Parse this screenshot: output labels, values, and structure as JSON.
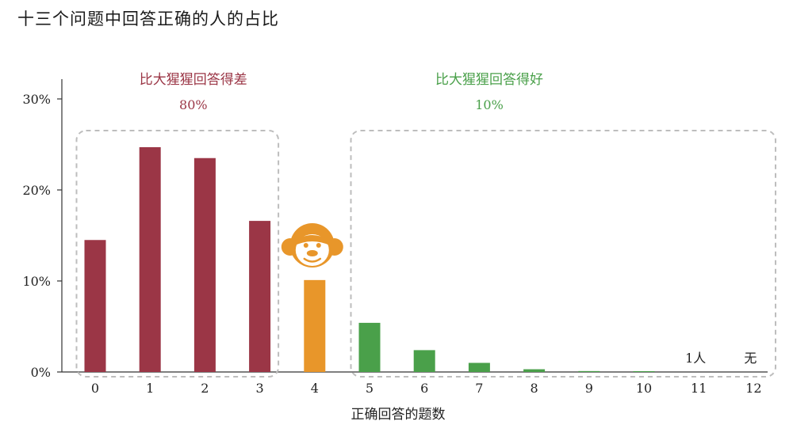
{
  "chart_data": {
    "type": "bar",
    "title": "十三个问题中回答正确的人的占比",
    "xlabel": "正确回答的题数",
    "ylabel": "",
    "ylim": [
      0,
      30
    ],
    "yticks": [
      "0%",
      "10%",
      "20%",
      "30%"
    ],
    "categories": [
      "0",
      "1",
      "2",
      "3",
      "4",
      "5",
      "6",
      "7",
      "8",
      "9",
      "10",
      "11",
      "12"
    ],
    "values": [
      14.5,
      24.7,
      23.5,
      16.6,
      10.1,
      5.4,
      2.4,
      1.0,
      0.3,
      0.1,
      0.05,
      0.0,
      0.0
    ],
    "bar_colors": [
      "#9b3646",
      "#9b3646",
      "#9b3646",
      "#9b3646",
      "#e8962a",
      "#4aa04a",
      "#4aa04a",
      "#4aa04a",
      "#4aa04a",
      "#4aa04a",
      "#4aa04a",
      "#4aa04a",
      "#4aa04a"
    ],
    "groups": [
      {
        "label": "比大猩猩回答得差",
        "percent": "80%",
        "color": "#9b3646",
        "from": 0,
        "to": 3
      },
      {
        "label": "比大猩猩回答得好",
        "percent": "10%",
        "color": "#4aa04a",
        "from": 5,
        "to": 12
      }
    ],
    "annotations": [
      {
        "category": "11",
        "text": "1人"
      },
      {
        "category": "12",
        "text": "无"
      }
    ],
    "marker": {
      "category": "4",
      "icon": "chimp-face-icon",
      "color": "#e8962a"
    },
    "grid": false
  }
}
